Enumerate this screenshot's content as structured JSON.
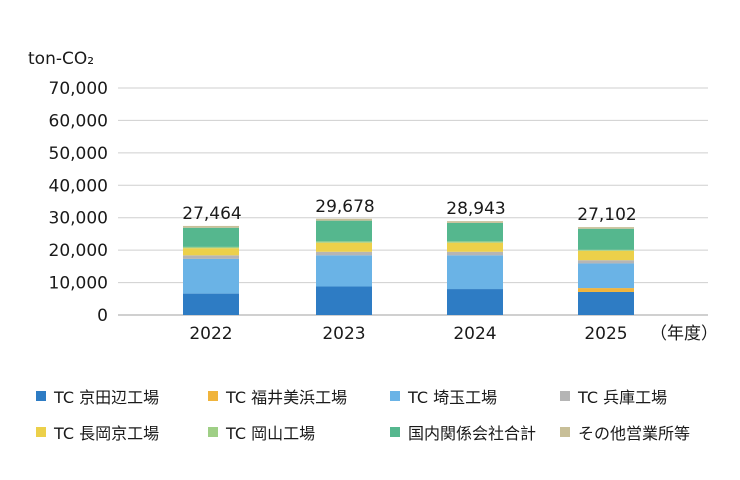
{
  "chart_data": {
    "type": "bar",
    "stacked": true,
    "unit_label": "ton-CO₂",
    "xunit_label": "（年度）",
    "categories": [
      "2022",
      "2023",
      "2024",
      "2025"
    ],
    "ylim": [
      0,
      70000
    ],
    "yticks": [
      "0",
      "10,000",
      "20,000",
      "30,000",
      "40,000",
      "50,000",
      "60,000",
      "70,000"
    ],
    "grid": true,
    "legend_position": "bottom",
    "totals": [
      "27,464",
      "29,678",
      "28,943",
      "27,102"
    ],
    "series": [
      {
        "name": "TC 京田辺工場",
        "color": "#2e7cc4",
        "values": [
          6600,
          8800,
          8000,
          7100
        ]
      },
      {
        "name": "TC 福井美浜工場",
        "color": "#f0b43c",
        "values": [
          0,
          0,
          0,
          1200
        ]
      },
      {
        "name": "TC 埼玉工場",
        "color": "#6ab3e6",
        "values": [
          10700,
          9600,
          10400,
          7600
        ]
      },
      {
        "name": "TC 兵庫工場",
        "color": "#b5b5b5",
        "values": [
          1100,
          1100,
          1100,
          1000
        ]
      },
      {
        "name": "TC 長岡京工場",
        "color": "#ecd04a",
        "values": [
          2200,
          2800,
          2800,
          2900
        ]
      },
      {
        "name": "TC 岡山工場",
        "color": "#9fcf86",
        "values": [
          400,
          400,
          400,
          300
        ]
      },
      {
        "name": "国内関係会社合計",
        "color": "#55b78e",
        "values": [
          5900,
          6400,
          5700,
          6500
        ]
      },
      {
        "name": "その他営業所等",
        "color": "#c8bf98",
        "values": [
          564,
          578,
          543,
          502
        ]
      }
    ]
  }
}
